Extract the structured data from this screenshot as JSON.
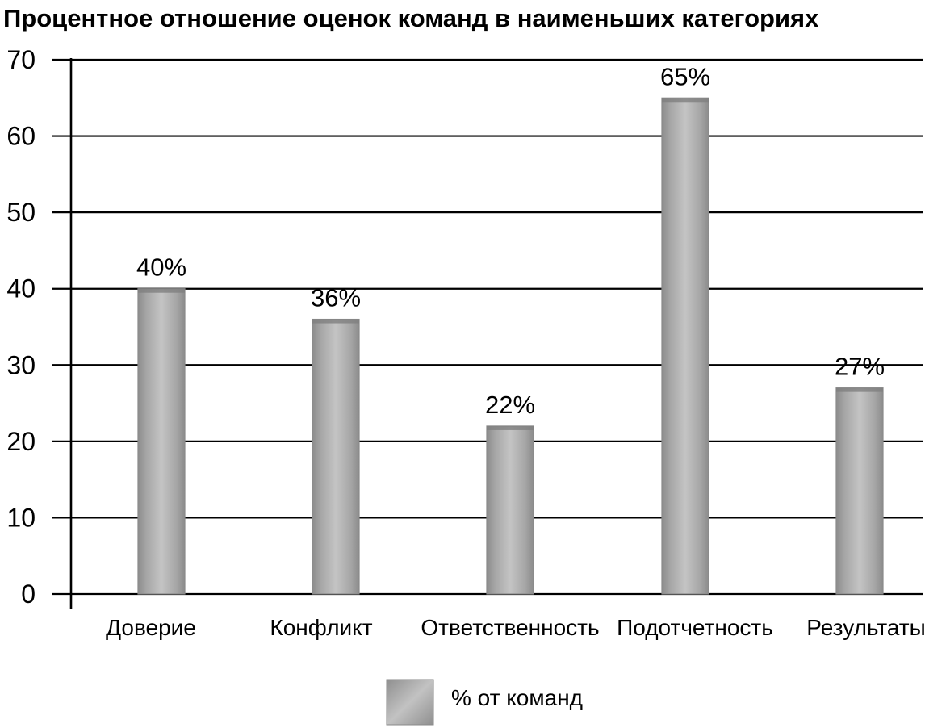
{
  "chart_data": {
    "type": "bar",
    "title": "Процентное отношение оценок команд в наименьших категориях",
    "categories": [
      "Доверие",
      "Конфликт",
      "Ответственность",
      "Подотчетность",
      "Результаты"
    ],
    "series": [
      {
        "name": "% от команд",
        "values": [
          40,
          36,
          22,
          65,
          27
        ],
        "data_labels": [
          "40%",
          "36%",
          "22%",
          "65%",
          "27%"
        ]
      }
    ],
    "y_ticks": [
      "0",
      "10",
      "20",
      "30",
      "40",
      "50",
      "60",
      "70"
    ],
    "ylim": [
      0,
      70
    ],
    "grid": true,
    "legend": "bottom-center",
    "bar_color": "#a9a9a9",
    "bar_edge_color": "#8a8a8a",
    "grid_color": "#000000"
  }
}
